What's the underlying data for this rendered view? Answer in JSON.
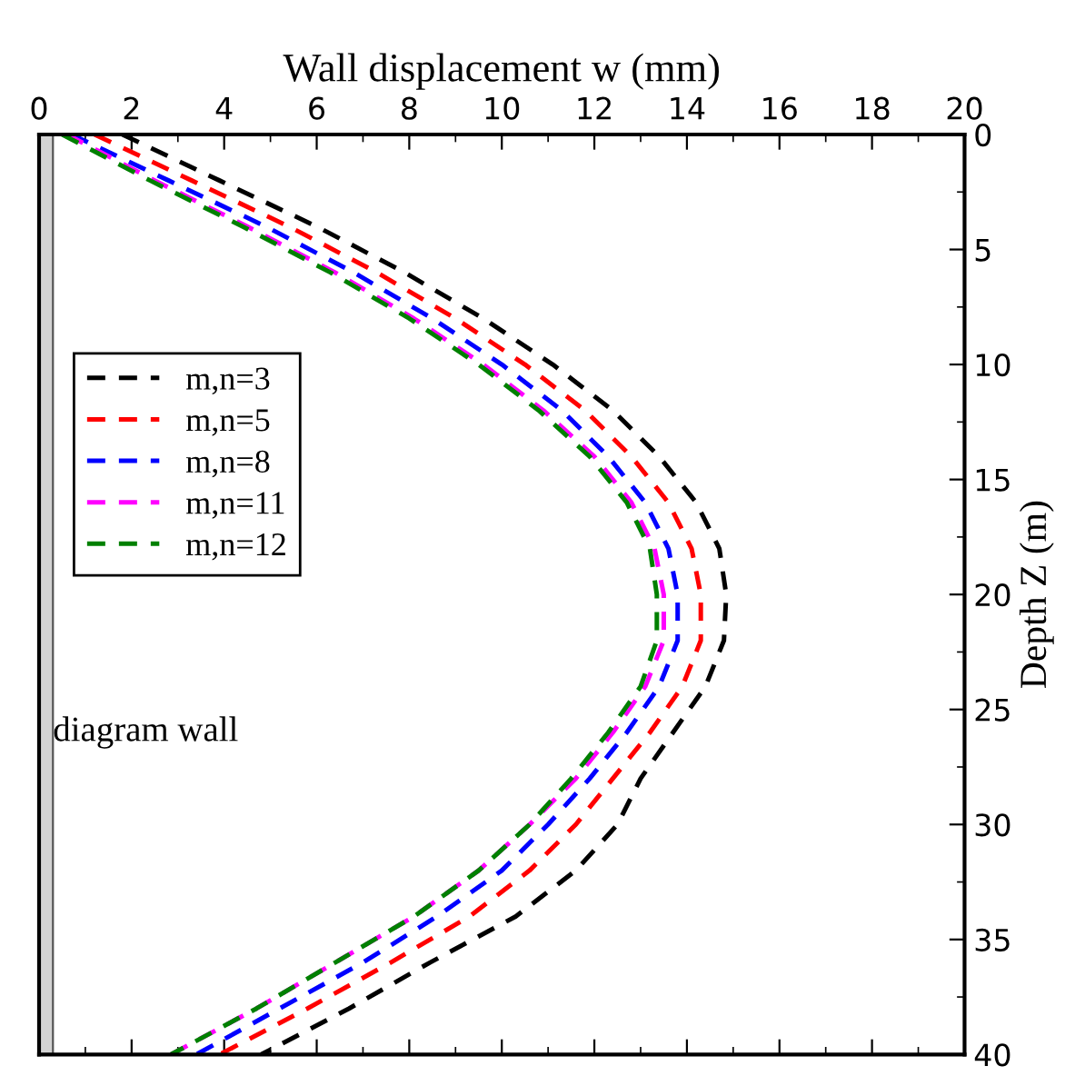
{
  "chart_data": {
    "type": "line",
    "xlabel": "Wall displacement w (mm)",
    "ylabel": "Depth Z (m)",
    "xlim": [
      0,
      20
    ],
    "xticks": [
      0,
      2,
      4,
      6,
      8,
      10,
      12,
      14,
      16,
      18,
      20
    ],
    "ylim": [
      40,
      0
    ],
    "yticks": [
      0,
      5,
      10,
      15,
      20,
      25,
      30,
      35,
      40
    ],
    "grid": false,
    "legend": "left",
    "line_style": "dashed",
    "marker": "none",
    "bands": [
      {
        "axis": "x",
        "from": 0,
        "to": 0.3,
        "label": "diagram wall",
        "color": "#d3d3d3"
      }
    ],
    "series": [
      {
        "name": "m,n=3",
        "color": "#000000",
        "values": [
          0,
          2,
          4,
          6,
          8,
          10,
          12,
          14,
          16,
          18,
          20,
          22,
          24,
          26,
          28,
          30,
          32,
          34,
          36,
          38,
          40
        ],
        "x": [
          1.8,
          3.9,
          6.0,
          7.9,
          9.6,
          11.1,
          12.4,
          13.4,
          14.2,
          14.7,
          14.85,
          14.8,
          14.4,
          13.7,
          13.0,
          12.5,
          11.6,
          10.3,
          8.45,
          6.7,
          4.8
        ]
      },
      {
        "name": "m,n=5",
        "color": "#ff0000",
        "values": [
          0,
          2,
          4,
          6,
          8,
          10,
          12,
          14,
          16,
          18,
          20,
          22,
          24,
          26,
          28,
          30,
          32,
          34,
          36,
          38,
          40
        ],
        "x": [
          1.2,
          3.3,
          5.4,
          7.3,
          9.0,
          10.5,
          11.8,
          12.8,
          13.6,
          14.1,
          14.3,
          14.3,
          13.9,
          13.2,
          12.4,
          11.6,
          10.6,
          9.3,
          7.6,
          5.8,
          3.9
        ]
      },
      {
        "name": "m,n=8",
        "color": "#0000ff",
        "values": [
          0,
          2,
          4,
          6,
          8,
          10,
          12,
          14,
          16,
          18,
          20,
          22,
          24,
          26,
          28,
          30,
          32,
          34,
          36,
          38,
          40
        ],
        "x": [
          0.7,
          2.8,
          4.9,
          6.8,
          8.5,
          10.0,
          11.3,
          12.3,
          13.1,
          13.6,
          13.8,
          13.8,
          13.4,
          12.7,
          11.9,
          11.0,
          10.0,
          8.6,
          7.0,
          5.2,
          3.4
        ]
      },
      {
        "name": "m,n=11",
        "color": "#ff00ff",
        "values": [
          0,
          2,
          4,
          6,
          8,
          10,
          12,
          14,
          16,
          18,
          20,
          22,
          24,
          26,
          28,
          30,
          32,
          34,
          36,
          38,
          40
        ],
        "x": [
          0.6,
          2.5,
          4.5,
          6.4,
          8.1,
          9.6,
          10.9,
          12.0,
          12.8,
          13.3,
          13.5,
          13.5,
          13.1,
          12.4,
          11.6,
          10.6,
          9.5,
          8.1,
          6.4,
          4.7,
          2.85
        ]
      },
      {
        "name": "m,n=12",
        "color": "#008000",
        "values": [
          0,
          2,
          4,
          6,
          8,
          10,
          12,
          14,
          16,
          18,
          20,
          22,
          24,
          26,
          28,
          30,
          32,
          34,
          36,
          38,
          40
        ],
        "x": [
          0.5,
          2.4,
          4.4,
          6.3,
          8.0,
          9.5,
          10.8,
          11.9,
          12.7,
          13.2,
          13.35,
          13.35,
          13.0,
          12.3,
          11.5,
          10.6,
          9.5,
          8.1,
          6.4,
          4.7,
          2.85
        ]
      }
    ]
  }
}
